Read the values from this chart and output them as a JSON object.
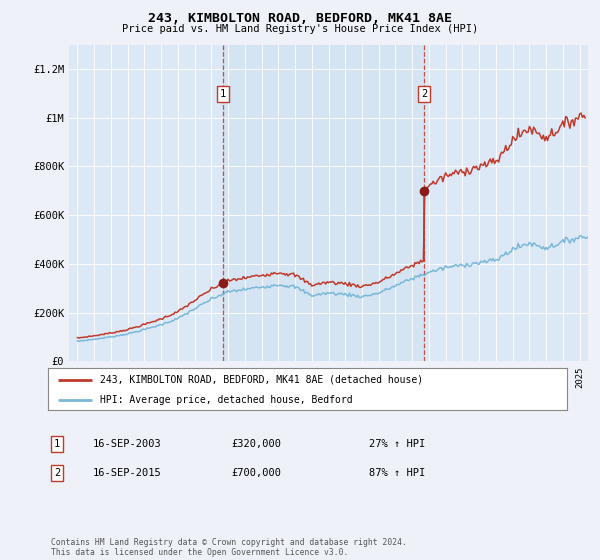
{
  "title": "243, KIMBOLTON ROAD, BEDFORD, MK41 8AE",
  "subtitle": "Price paid vs. HM Land Registry's House Price Index (HPI)",
  "background_color": "#eef2f8",
  "plot_bg_color": "#dce8f5",
  "ylabel_ticks": [
    "£0",
    "£200K",
    "£400K",
    "£600K",
    "£800K",
    "£1M",
    "£1.2M"
  ],
  "ytick_values": [
    0,
    200000,
    400000,
    600000,
    800000,
    1000000,
    1200000
  ],
  "ylim": [
    0,
    1300000
  ],
  "xlim_start": 1994.5,
  "xlim_end": 2025.5,
  "sale1_year": 2003.71,
  "sale1_price": 320000,
  "sale2_year": 2015.71,
  "sale2_price": 700000,
  "legend_line1": "243, KIMBOLTON ROAD, BEDFORD, MK41 8AE (detached house)",
  "legend_line2": "HPI: Average price, detached house, Bedford",
  "annotation1_date": "16-SEP-2003",
  "annotation1_price": "£320,000",
  "annotation1_hpi": "27% ↑ HPI",
  "annotation2_date": "16-SEP-2015",
  "annotation2_price": "£700,000",
  "annotation2_hpi": "87% ↑ HPI",
  "footer": "Contains HM Land Registry data © Crown copyright and database right 2024.\nThis data is licensed under the Open Government Licence v3.0.",
  "hpi_color": "#7ab8d8",
  "price_color": "#c0392b",
  "sale_marker_color": "#8b1a1a",
  "vline_color": "#c0392b"
}
